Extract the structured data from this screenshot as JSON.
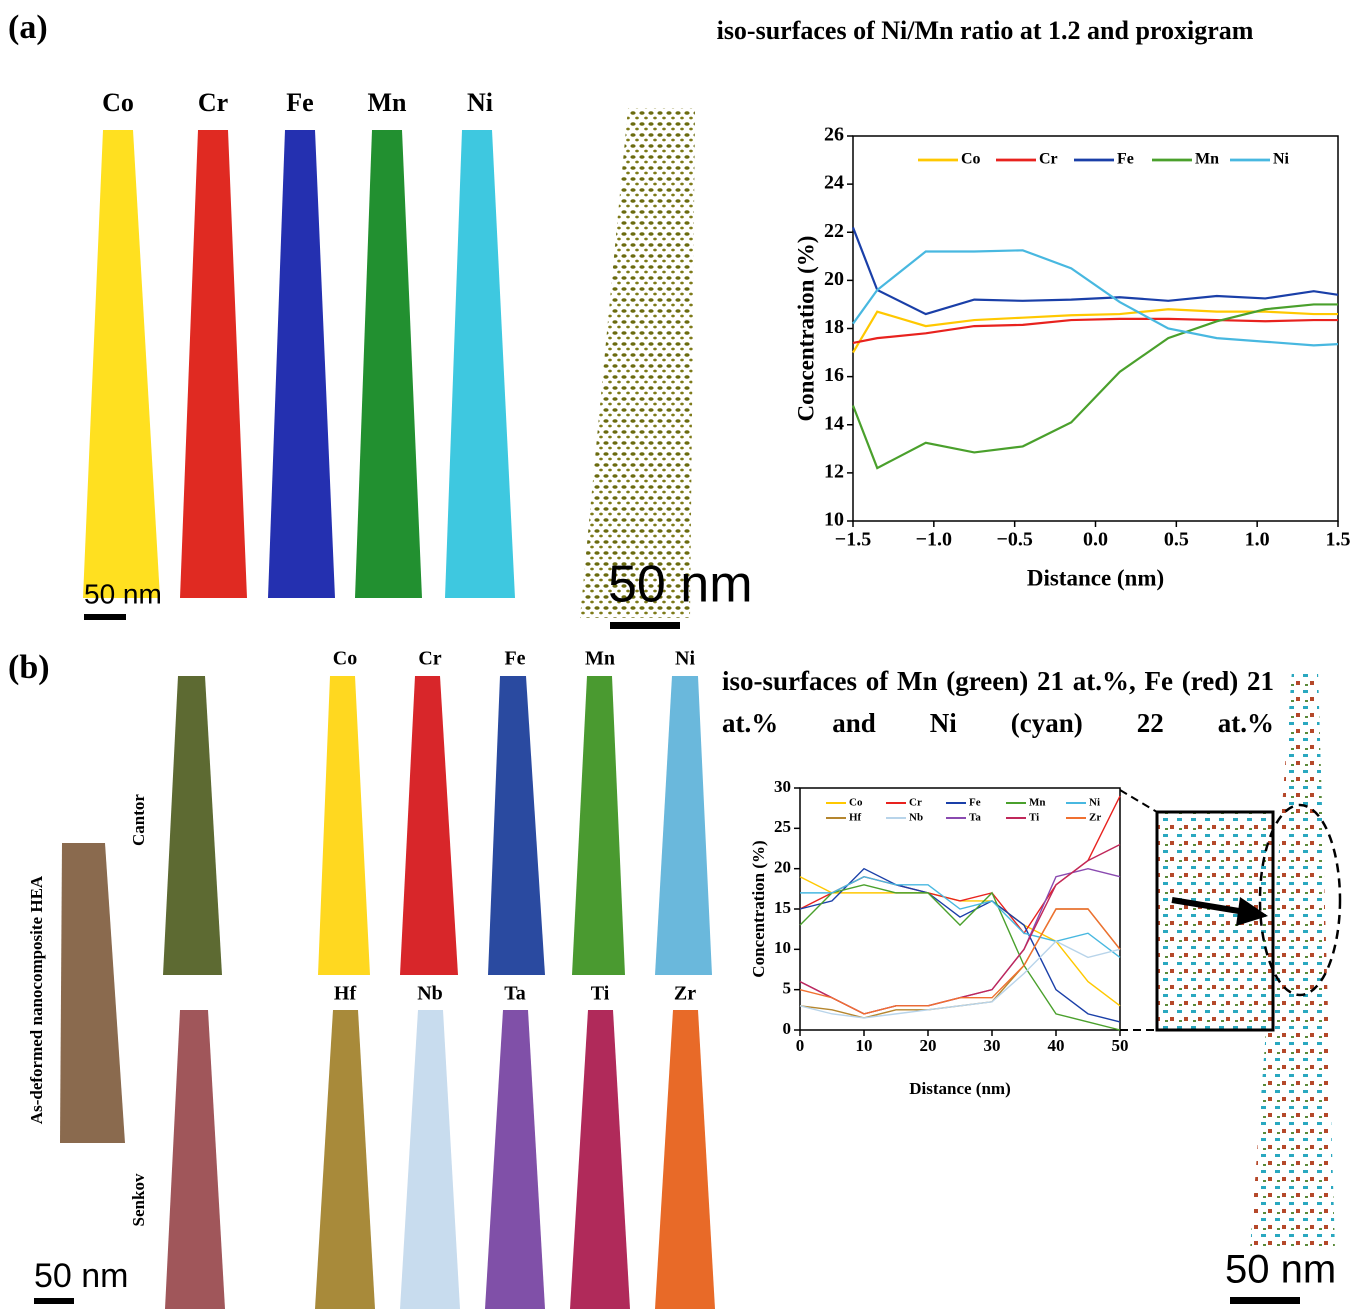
{
  "figure": {
    "panel_a": "(a)",
    "panel_b": "(b)",
    "a_elements": [
      "Co",
      "Cr",
      "Fe",
      "Mn",
      "Ni"
    ],
    "b_cantor_elements": [
      "Co",
      "Cr",
      "Fe",
      "Mn",
      "Ni"
    ],
    "b_senkov_elements": [
      "Hf",
      "Nb",
      "Ta",
      "Ti",
      "Zr"
    ],
    "cantor": "Cantor",
    "senkov": "Senkov",
    "as_deformed": "As-deformed nanocomposite HEA",
    "scale_bars": [
      "50 nm",
      "50 nm",
      "50 nm",
      "50 nm"
    ]
  },
  "chart_data": [
    {
      "type": "line",
      "title": "iso-surfaces of Ni/Mn ratio at 1.2 and proxigram",
      "x_label": "Distance (nm)",
      "y_label": "Concentration (%)",
      "x": [
        -1.5,
        -1.35,
        -1.05,
        -0.75,
        -0.45,
        -0.15,
        0.15,
        0.45,
        0.75,
        1.05,
        1.35,
        1.5
      ],
      "series": [
        {
          "name": "Co",
          "color": "#ffc800",
          "values": [
            17.0,
            18.7,
            18.1,
            18.35,
            18.45,
            18.55,
            18.6,
            18.8,
            18.7,
            18.7,
            18.6,
            18.6
          ]
        },
        {
          "name": "Cr",
          "color": "#e8221e",
          "values": [
            17.4,
            17.6,
            17.8,
            18.1,
            18.15,
            18.35,
            18.4,
            18.4,
            18.35,
            18.3,
            18.35,
            18.35
          ]
        },
        {
          "name": "Fe",
          "color": "#1a3fa8",
          "values": [
            22.2,
            19.6,
            18.6,
            19.2,
            19.15,
            19.2,
            19.3,
            19.15,
            19.35,
            19.25,
            19.55,
            19.4
          ]
        },
        {
          "name": "Mn",
          "color": "#4aa02c",
          "values": [
            14.8,
            12.2,
            13.25,
            12.85,
            13.1,
            14.1,
            16.2,
            17.6,
            18.3,
            18.8,
            19.0,
            19.0
          ]
        },
        {
          "name": "Ni",
          "color": "#48b8e0",
          "values": [
            18.2,
            19.6,
            21.2,
            21.2,
            21.25,
            20.5,
            19.1,
            18.0,
            17.6,
            17.45,
            17.3,
            17.35
          ]
        }
      ],
      "xlim": [
        -1.5,
        1.5
      ],
      "xticks": [
        {
          "value": -1.5,
          "label": "−1.5"
        },
        {
          "value": -1.0,
          "label": "−1.0"
        },
        {
          "value": -0.5,
          "label": "−0.5"
        },
        {
          "value": 0,
          "label": "0.0"
        },
        0.5,
        {
          "value": 1.0,
          "label": "1.0"
        },
        1.5
      ],
      "ylim": [
        10,
        26
      ],
      "yticks": [
        10,
        12,
        14,
        16,
        18,
        20,
        22,
        24,
        26
      ]
    },
    {
      "type": "line",
      "title": "iso-surfaces of Mn (green) 21 at.%, Fe (red) 21 at.% and Ni (cyan) 22 at.%",
      "x_label": "Distance (nm)",
      "y_label": "Concentration (%)",
      "x": [
        0,
        5,
        10,
        15,
        20,
        25,
        30,
        35,
        40,
        45,
        50
      ],
      "series": [
        {
          "name": "Co",
          "color": "#ffc800",
          "values": [
            19,
            17,
            17,
            17,
            17,
            16,
            16,
            13,
            11,
            6,
            3
          ]
        },
        {
          "name": "Cr",
          "color": "#e8221e",
          "values": [
            15,
            17,
            19,
            18,
            17,
            16,
            17,
            12,
            18,
            21,
            29
          ]
        },
        {
          "name": "Fe",
          "color": "#1a3fa8",
          "values": [
            15,
            16,
            20,
            18,
            17,
            14,
            16,
            13,
            5,
            2,
            1
          ]
        },
        {
          "name": "Mn",
          "color": "#4aa02c",
          "values": [
            13,
            17,
            18,
            17,
            17,
            13,
            17,
            8,
            2,
            1,
            0
          ]
        },
        {
          "name": "Ni",
          "color": "#48b8e0",
          "values": [
            17,
            17,
            19,
            18,
            18,
            15,
            16,
            12,
            11,
            12,
            9
          ]
        },
        {
          "name": "Hf",
          "color": "#b5862e",
          "values": [
            3,
            2.5,
            1.5,
            2.5,
            2.5,
            3,
            3.5,
            8,
            15,
            15,
            10
          ]
        },
        {
          "name": "Nb",
          "color": "#b8d4ea",
          "values": [
            3,
            2,
            1.5,
            2,
            2.5,
            3,
            3.5,
            7,
            11,
            9,
            10
          ]
        },
        {
          "name": "Ta",
          "color": "#8a4ab0",
          "values": [
            6,
            4,
            2,
            3,
            3,
            4,
            5,
            10,
            19,
            20,
            19
          ]
        },
        {
          "name": "Ti",
          "color": "#c0285a",
          "values": [
            6,
            4,
            2,
            3,
            3,
            4,
            5,
            10,
            18,
            21,
            23
          ]
        },
        {
          "name": "Zr",
          "color": "#f07030",
          "values": [
            5,
            4,
            2,
            3,
            3,
            4,
            4,
            8,
            15,
            15,
            10
          ]
        }
      ],
      "xlim": [
        0,
        50
      ],
      "xticks": [
        0,
        10,
        20,
        30,
        40,
        50
      ],
      "ylim": [
        0,
        30
      ],
      "yticks": [
        0,
        5,
        10,
        15,
        20,
        25,
        30
      ]
    }
  ]
}
